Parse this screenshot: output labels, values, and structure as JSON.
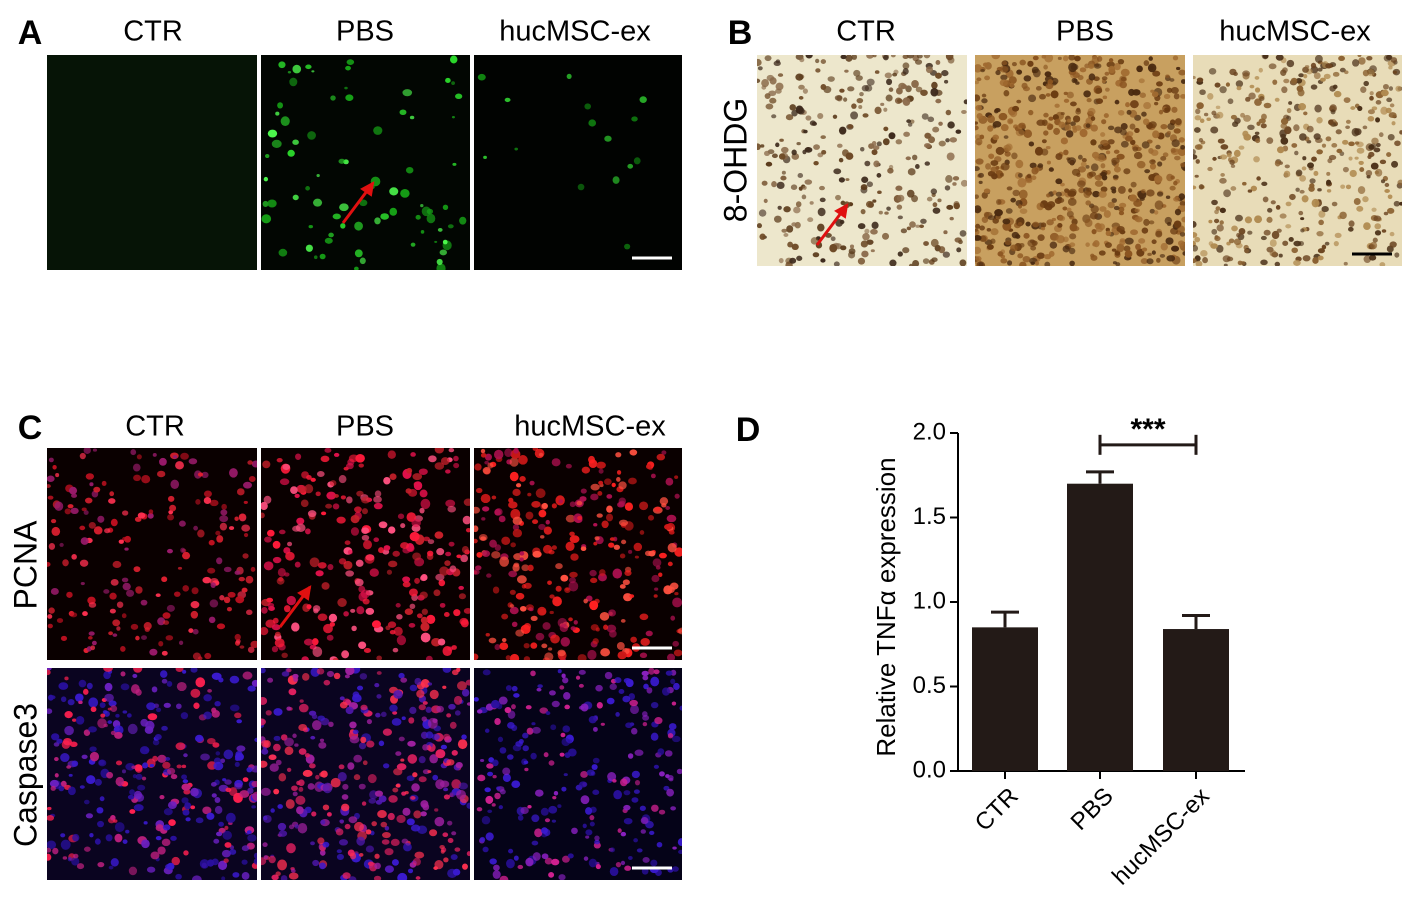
{
  "panels": {
    "A": {
      "label": "A",
      "columns": [
        "CTR",
        "PBS",
        "hucMSC-ex"
      ]
    },
    "B": {
      "label": "B",
      "columns": [
        "CTR",
        "PBS",
        "hucMSC-ex"
      ],
      "row": "8-OHDG"
    },
    "C": {
      "label": "C",
      "columns": [
        "CTR",
        "PBS",
        "hucMSC-ex"
      ],
      "rows": [
        "PCNA",
        "Caspase3"
      ]
    }
  },
  "chart_data": {
    "type": "bar",
    "label": "D",
    "y_label": "Relative TNFα expression",
    "categories": [
      "CTR",
      "PBS",
      "hucMSC-ex"
    ],
    "values": [
      0.85,
      1.7,
      0.84
    ],
    "errors": [
      0.09,
      0.07,
      0.08
    ],
    "color": "#231a17",
    "ylim": [
      0,
      2.0
    ],
    "yticks": [
      {
        "value": 0,
        "label": "0.0"
      },
      0.5,
      {
        "value": 1,
        "label": "1.0"
      },
      1.5,
      {
        "value": 2,
        "label": "2.0"
      }
    ],
    "annotations": [
      "***"
    ]
  }
}
